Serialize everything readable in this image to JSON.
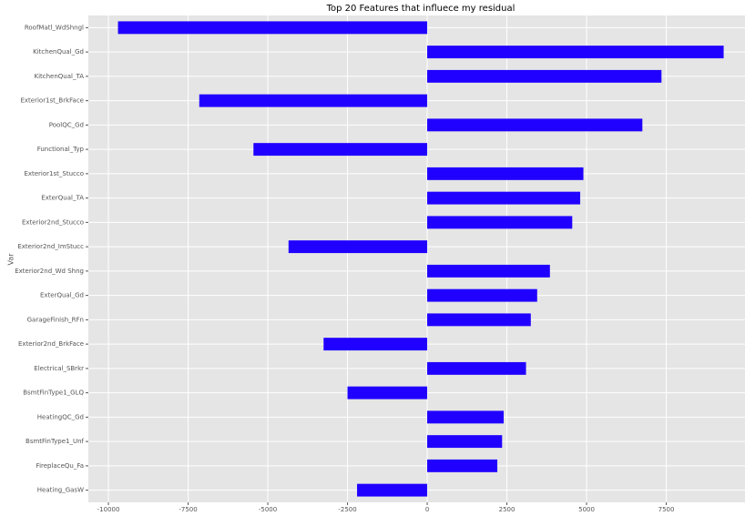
{
  "chart_data": {
    "type": "barh",
    "title": "Top 20 Features that influece my residual",
    "y_label": "Var",
    "categories": [
      "RoofMatl_WdShngl",
      "KitchenQual_Gd",
      "KitchenQual_TA",
      "Exterior1st_BrkFace",
      "PoolQC_Gd",
      "Functional_Typ",
      "Exterior1st_Stucco",
      "ExterQual_TA",
      "Exterior2nd_Stucco",
      "Exterior2nd_ImStucc",
      "Exterior2nd_Wd Shng",
      "ExterQual_Gd",
      "GarageFinish_RFn",
      "Exterior2nd_BrkFace",
      "Electrical_SBrkr",
      "BsmtFinType1_GLQ",
      "HeatingQC_Gd",
      "BsmtFinType1_Unf",
      "FireplaceQu_Fa",
      "Heating_GasW"
    ],
    "values": [
      -9700,
      9300,
      7350,
      -7150,
      6750,
      -5450,
      4900,
      4800,
      4550,
      -4350,
      3850,
      3450,
      3250,
      -3250,
      3100,
      -2500,
      2400,
      2350,
      2200,
      -2200
    ],
    "color": "#2000ff",
    "xlim": [
      -10630,
      9970
    ],
    "xticks": [
      -10000,
      -7500,
      -5000,
      -2500,
      0,
      2500,
      5000,
      7500
    ],
    "grid": true
  }
}
